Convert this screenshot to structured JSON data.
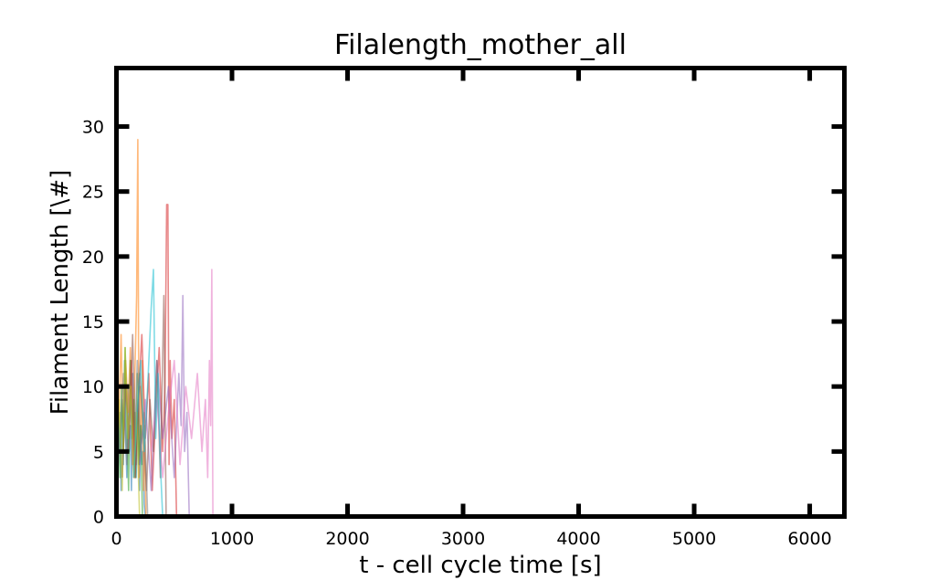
{
  "chart_data": {
    "type": "line",
    "title": "Filalength_mother_all",
    "xlabel": "t - cell cycle time [s]",
    "ylabel": "Filament Length [\\#]",
    "xlim": [
      0,
      6300
    ],
    "ylim": [
      0,
      34.5
    ],
    "xticks": [
      0,
      1000,
      2000,
      3000,
      4000,
      5000,
      6000
    ],
    "yticks": [
      0,
      5,
      10,
      15,
      20,
      25,
      30
    ],
    "grid": false,
    "legend": "none",
    "series": [
      {
        "color": "#1f77b4",
        "x": [
          0,
          10,
          20,
          30,
          40,
          50,
          60,
          70,
          80,
          90,
          100,
          110,
          120,
          130,
          140,
          150,
          160,
          170,
          180,
          190,
          200,
          210,
          220,
          230,
          240,
          250
        ],
        "y": [
          3,
          11,
          5,
          8,
          2,
          9,
          4,
          12,
          6,
          3,
          10,
          5,
          7,
          2,
          11,
          4,
          8,
          3,
          6,
          9,
          2,
          7,
          4,
          5,
          1,
          0
        ]
      },
      {
        "color": "#ff7f0e",
        "x": [
          0,
          20,
          40,
          60,
          80,
          100,
          120,
          140,
          160,
          175,
          185,
          195,
          205,
          215,
          225,
          235,
          245,
          255
        ],
        "y": [
          2,
          7,
          14,
          5,
          12,
          8,
          13,
          4,
          11,
          17,
          29,
          3,
          10,
          6,
          12,
          2,
          7,
          0
        ]
      },
      {
        "color": "#2ca02c",
        "x": [
          0,
          15,
          30,
          45,
          60,
          75,
          90,
          105,
          120,
          135,
          150,
          165,
          180,
          195,
          210,
          225
        ],
        "y": [
          1,
          8,
          3,
          10,
          5,
          13,
          7,
          2,
          12,
          6,
          9,
          3,
          11,
          4,
          7,
          0
        ]
      },
      {
        "color": "#d62728",
        "x": [
          100,
          130,
          160,
          190,
          220,
          250,
          280,
          310,
          340,
          370,
          400,
          420,
          435,
          445,
          455,
          465,
          480,
          500,
          520
        ],
        "y": [
          5,
          12,
          3,
          9,
          14,
          6,
          11,
          2,
          8,
          13,
          5,
          10,
          24,
          24,
          4,
          12,
          6,
          9,
          0
        ]
      },
      {
        "color": "#9467bd",
        "x": [
          200,
          250,
          300,
          350,
          400,
          450,
          500,
          540,
          560,
          575,
          590,
          610,
          630
        ],
        "y": [
          4,
          9,
          2,
          12,
          6,
          10,
          3,
          11,
          7,
          17,
          5,
          8,
          0
        ]
      },
      {
        "color": "#8c564b",
        "x": [
          50,
          80,
          110,
          140,
          170,
          200,
          230,
          260,
          290,
          320,
          350,
          380,
          410,
          430
        ],
        "y": [
          3,
          10,
          6,
          14,
          4,
          11,
          7,
          2,
          9,
          5,
          12,
          3,
          17,
          0
        ]
      },
      {
        "color": "#e377c2",
        "x": [
          300,
          350,
          400,
          450,
          500,
          550,
          600,
          650,
          700,
          740,
          770,
          790,
          805,
          815,
          825,
          835
        ],
        "y": [
          5,
          9,
          3,
          8,
          12,
          4,
          10,
          6,
          11,
          5,
          9,
          3,
          12,
          7,
          19,
          0
        ]
      },
      {
        "color": "#7f7f7f",
        "x": [
          0,
          30,
          60,
          90,
          120,
          150,
          180,
          210,
          240,
          270
        ],
        "y": [
          2,
          6,
          11,
          4,
          9,
          3,
          12,
          5,
          8,
          0
        ]
      },
      {
        "color": "#bcbd22",
        "x": [
          0,
          25,
          50,
          75,
          100,
          125,
          150,
          175,
          200
        ],
        "y": [
          4,
          9,
          2,
          13,
          6,
          10,
          3,
          8,
          0
        ]
      },
      {
        "color": "#17becf",
        "x": [
          150,
          180,
          210,
          240,
          270,
          300,
          320,
          340,
          360,
          380,
          400
        ],
        "y": [
          3,
          8,
          12,
          5,
          10,
          16,
          19,
          6,
          11,
          4,
          0
        ]
      }
    ]
  }
}
